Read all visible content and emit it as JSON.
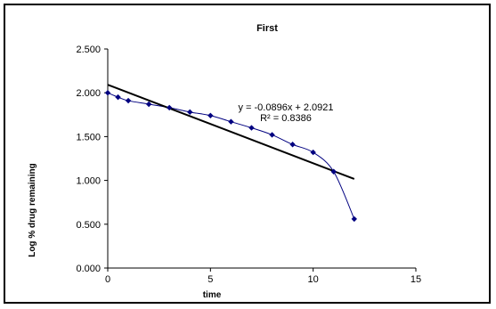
{
  "chart_data": {
    "type": "scatter",
    "title": "First",
    "xlabel": "time",
    "ylabel": "Log % drug remaining",
    "xlim": [
      0,
      15
    ],
    "ylim": [
      0,
      2.5
    ],
    "x_ticks": [
      "0",
      "5",
      "10",
      "15"
    ],
    "y_ticks": [
      "0.000",
      "0.500",
      "1.000",
      "1.500",
      "2.000",
      "2.500"
    ],
    "grid": false,
    "legend": "none",
    "series": [
      {
        "x": [
          0,
          0.5,
          1,
          2,
          3,
          4,
          5,
          6,
          7,
          8,
          9,
          10,
          11,
          12
        ],
        "values": [
          2.0,
          1.95,
          1.91,
          1.87,
          1.83,
          1.78,
          1.74,
          1.67,
          1.6,
          1.52,
          1.41,
          1.32,
          1.1,
          0.56
        ],
        "color": "#000080",
        "marker": "diamond",
        "line": "smooth"
      }
    ],
    "trendline": {
      "slope": -0.0896,
      "intercept": 2.0921,
      "x_range": [
        0,
        12
      ],
      "color": "#000000",
      "equation": "y = -0.0896x + 2.0921",
      "r_squared": "R² = 0.8386"
    }
  }
}
